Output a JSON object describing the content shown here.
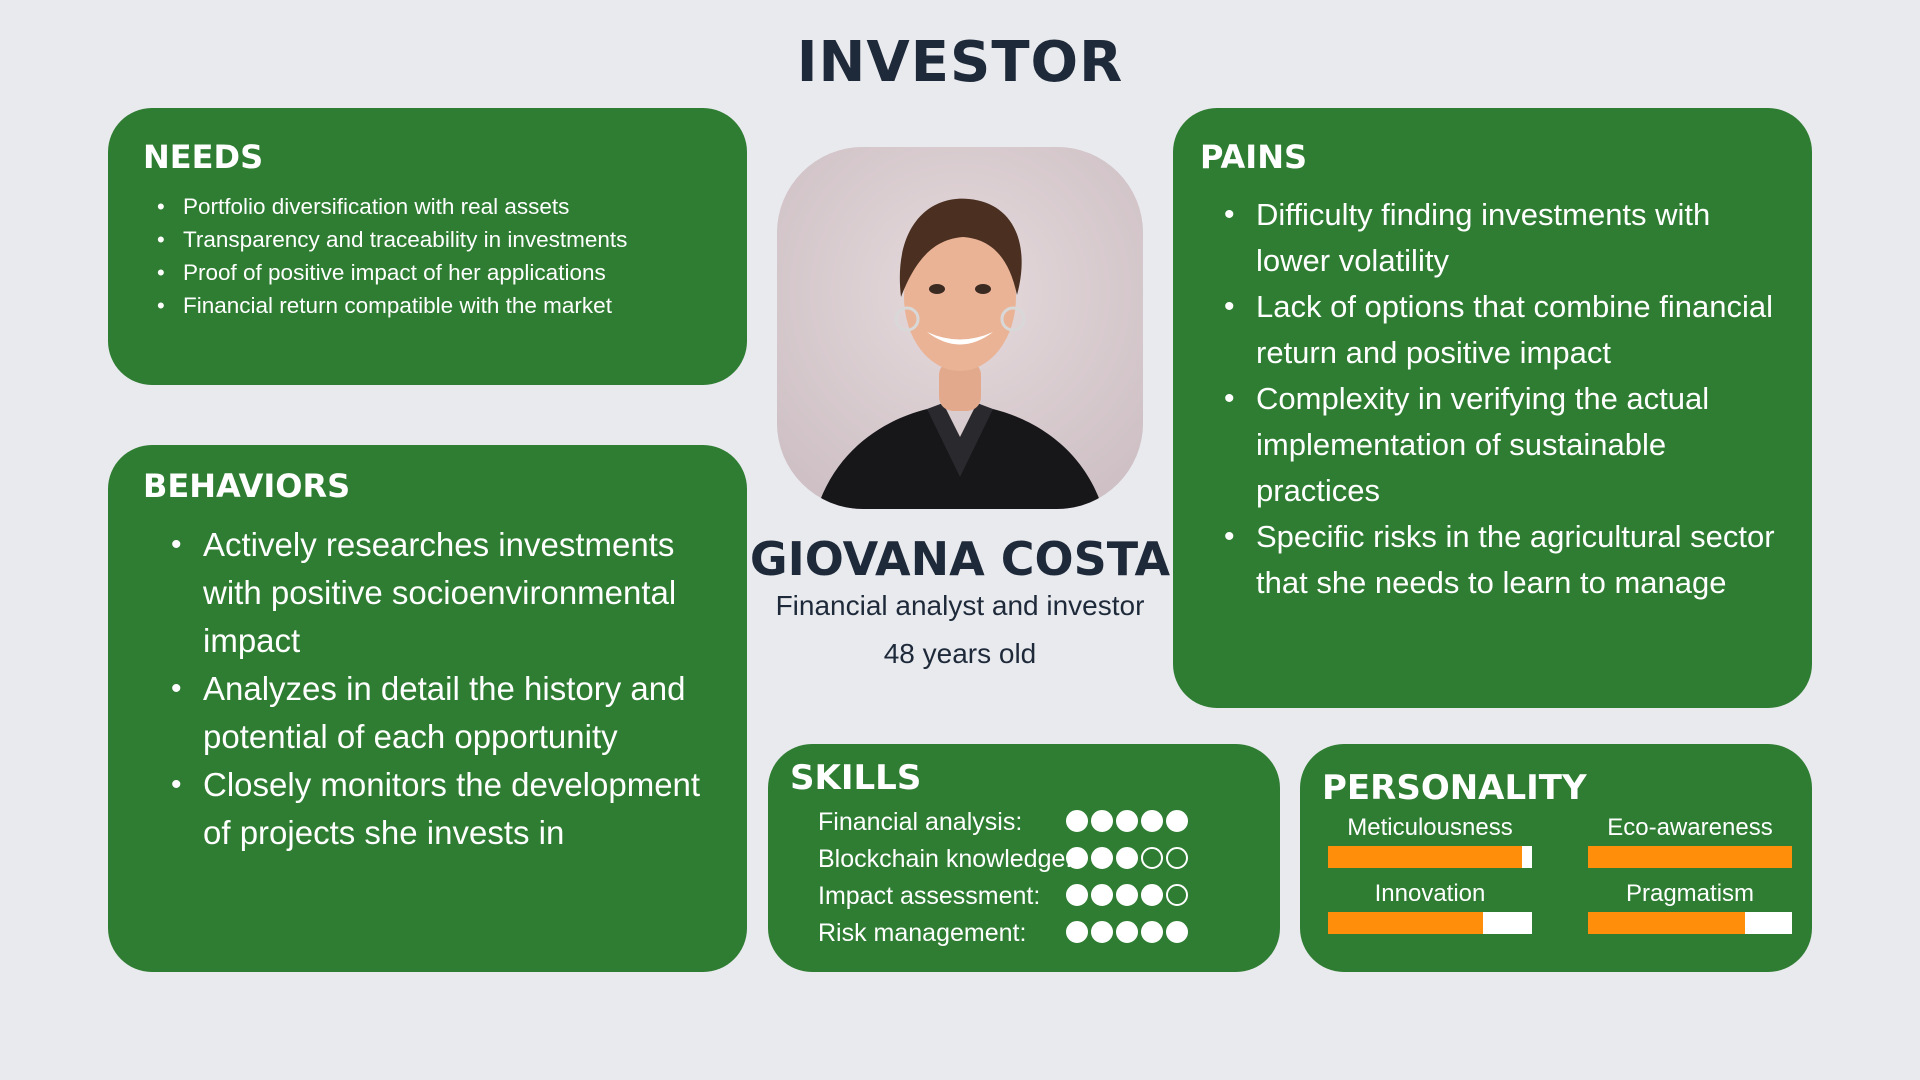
{
  "title": "INVESTOR",
  "profile": {
    "name": "GIOVANA COSTA",
    "role": "Financial analyst and investor",
    "age": "48 years old"
  },
  "needs": {
    "heading": "NEEDS",
    "items": [
      "Portfolio diversification with real assets",
      "Transparency and traceability in investments",
      "Proof of positive impact of her applications",
      "Financial return compatible with the market"
    ]
  },
  "behaviors": {
    "heading": "BEHAVIORS",
    "items": [
      "Actively researches investments with positive socioenvironmental impact",
      "Analyzes in detail the history and potential of each opportunity",
      "Closely monitors the development of projects she invests in"
    ]
  },
  "pains": {
    "heading": "PAINS",
    "items": [
      "Difficulty finding investments with lower volatility",
      "Lack of options that combine financial return and positive impact",
      "Complexity in verifying the actual implementation of sustainable practices",
      "Specific risks in the agricultural sector that she needs to learn to manage"
    ]
  },
  "skills": {
    "heading": "SKILLS",
    "max": 5,
    "items": [
      {
        "label": "Financial analysis:",
        "level": 5
      },
      {
        "label": "Blockchain knowledge:",
        "level": 3
      },
      {
        "label": "Impact assessment:",
        "level": 4
      },
      {
        "label": "Risk management:",
        "level": 5
      }
    ]
  },
  "personality": {
    "heading": "PERSONALITY",
    "items": [
      {
        "label": "Meticulousness",
        "level": 0.95
      },
      {
        "label": "Eco-awareness",
        "level": 1.0
      },
      {
        "label": "Innovation",
        "level": 0.76
      },
      {
        "label": "Pragmatism",
        "level": 0.77
      }
    ]
  },
  "colors": {
    "card": "#2e7d32",
    "background": "#e9eaee",
    "heading_text": "#1e2a3a",
    "bar_fill": "#ff8f0a"
  }
}
